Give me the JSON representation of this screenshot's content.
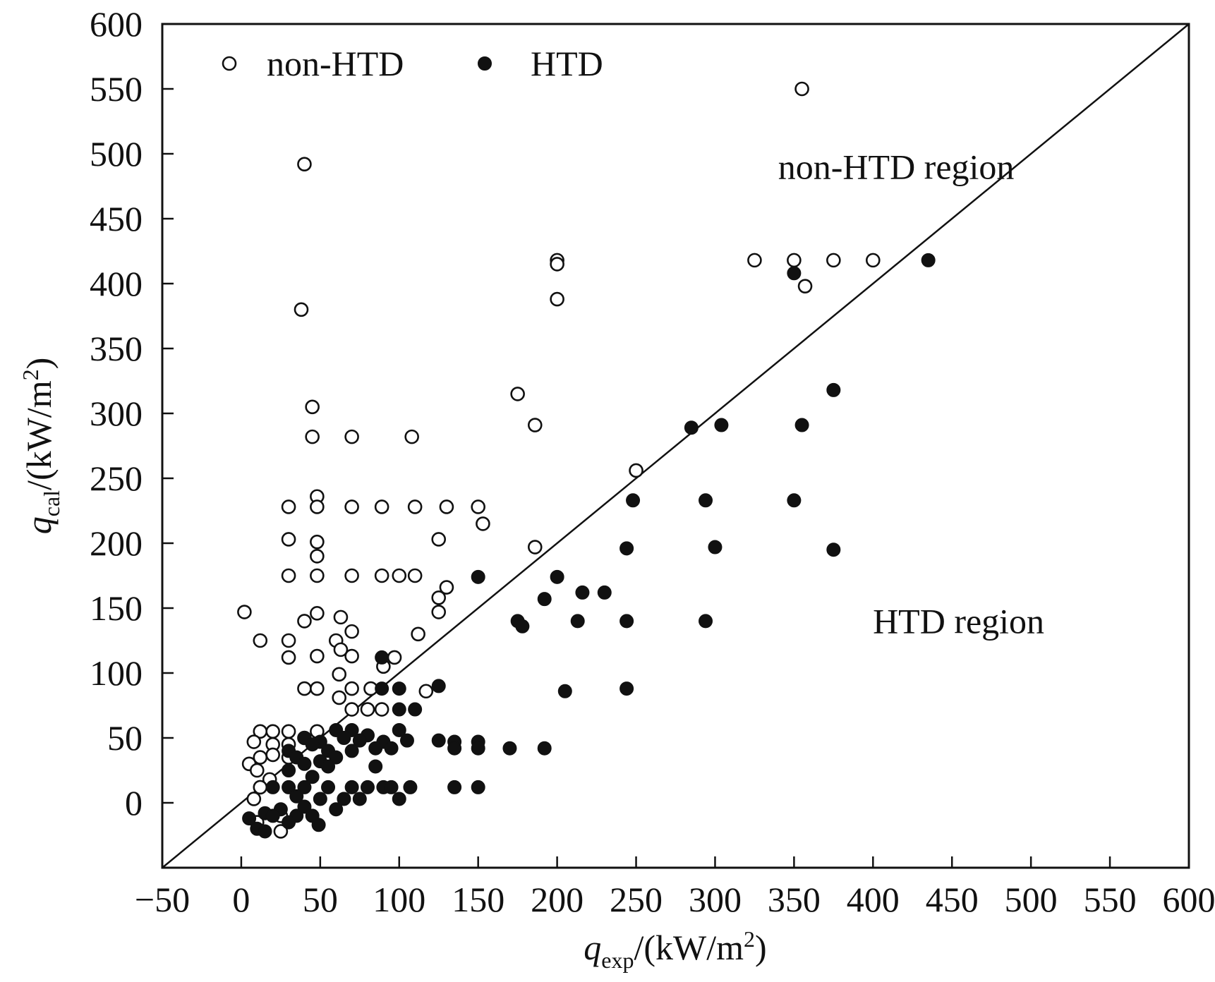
{
  "chart_data": {
    "type": "scatter",
    "x_axis": {
      "symbol": "q",
      "subscript": "exp",
      "unit_prefix": "/(kW/m",
      "unit_sup": "2",
      "unit_suffix": ")",
      "range": [
        -50,
        600
      ],
      "ticks": [
        -50,
        0,
        50,
        100,
        150,
        200,
        250,
        300,
        350,
        400,
        450,
        500,
        550,
        600
      ],
      "tick_labels": [
        "−50",
        "0",
        "50",
        "100",
        "150",
        "200",
        "250",
        "300",
        "350",
        "400",
        "450",
        "500",
        "550",
        "600"
      ]
    },
    "y_axis": {
      "symbol": "q",
      "subscript": "cal",
      "unit_prefix": "/(kW/m",
      "unit_sup": "2",
      "unit_suffix": ")",
      "range": [
        -50,
        600
      ],
      "ticks": [
        -50,
        0,
        50,
        100,
        150,
        200,
        250,
        300,
        350,
        400,
        450,
        500,
        550,
        600
      ],
      "tick_labels": [
        "−50",
        "0",
        "50",
        "100",
        "150",
        "200",
        "250",
        "300",
        "350",
        "400",
        "450",
        "500",
        "550",
        "600"
      ]
    },
    "reference_line": {
      "label": "y = x",
      "from": [
        -50,
        -50
      ],
      "to": [
        600,
        600
      ]
    },
    "legend": {
      "position": "top-left",
      "entries": [
        {
          "name": "non-HTD",
          "marker": "open-circle"
        },
        {
          "name": "HTD",
          "marker": "filled-circle"
        }
      ]
    },
    "annotations": [
      {
        "text": "non-HTD region",
        "x": 360,
        "y": 490
      },
      {
        "text": "HTD region",
        "x": 420,
        "y": 140
      }
    ],
    "series": [
      {
        "name": "non-HTD",
        "marker": "open-circle",
        "points": [
          [
            355,
            550
          ],
          [
            40,
            492
          ],
          [
            38,
            380
          ],
          [
            45,
            305
          ],
          [
            45,
            282
          ],
          [
            70,
            282
          ],
          [
            108,
            282
          ],
          [
            200,
            418
          ],
          [
            200,
            415
          ],
          [
            200,
            388
          ],
          [
            175,
            315
          ],
          [
            186,
            291
          ],
          [
            250,
            256
          ],
          [
            325,
            418
          ],
          [
            350,
            418
          ],
          [
            375,
            418
          ],
          [
            400,
            418
          ],
          [
            357,
            398
          ],
          [
            30,
            228
          ],
          [
            48,
            236
          ],
          [
            48,
            228
          ],
          [
            70,
            228
          ],
          [
            89,
            228
          ],
          [
            110,
            228
          ],
          [
            130,
            228
          ],
          [
            150,
            228
          ],
          [
            30,
            203
          ],
          [
            48,
            201
          ],
          [
            48,
            190
          ],
          [
            125,
            203
          ],
          [
            153,
            215
          ],
          [
            186,
            197
          ],
          [
            30,
            175
          ],
          [
            48,
            175
          ],
          [
            70,
            175
          ],
          [
            89,
            175
          ],
          [
            100,
            175
          ],
          [
            110,
            175
          ],
          [
            130,
            166
          ],
          [
            125,
            158
          ],
          [
            125,
            147
          ],
          [
            2,
            147
          ],
          [
            12,
            125
          ],
          [
            30,
            125
          ],
          [
            30,
            112
          ],
          [
            40,
            140
          ],
          [
            48,
            146
          ],
          [
            60,
            125
          ],
          [
            63,
            143
          ],
          [
            63,
            118
          ],
          [
            70,
            132
          ],
          [
            70,
            113
          ],
          [
            48,
            113
          ],
          [
            90,
            105
          ],
          [
            97,
            112
          ],
          [
            112,
            130
          ],
          [
            40,
            88
          ],
          [
            48,
            88
          ],
          [
            70,
            88
          ],
          [
            82,
            88
          ],
          [
            117,
            86
          ],
          [
            62,
            99
          ],
          [
            62,
            81
          ],
          [
            70,
            72
          ],
          [
            80,
            72
          ],
          [
            89,
            72
          ],
          [
            12,
            55
          ],
          [
            20,
            55
          ],
          [
            30,
            55
          ],
          [
            48,
            55
          ],
          [
            8,
            47
          ],
          [
            20,
            45
          ],
          [
            30,
            45
          ],
          [
            40,
            50
          ],
          [
            5,
            30
          ],
          [
            12,
            35
          ],
          [
            20,
            37
          ],
          [
            30,
            35
          ],
          [
            10,
            25
          ],
          [
            18,
            18
          ],
          [
            12,
            12
          ],
          [
            8,
            3
          ],
          [
            25,
            -10
          ],
          [
            10,
            -15
          ],
          [
            25,
            -22
          ]
        ]
      },
      {
        "name": "HTD",
        "marker": "filled-circle",
        "points": [
          [
            435,
            418
          ],
          [
            350,
            408
          ],
          [
            375,
            318
          ],
          [
            285,
            289
          ],
          [
            304,
            291
          ],
          [
            355,
            291
          ],
          [
            248,
            233
          ],
          [
            294,
            233
          ],
          [
            350,
            233
          ],
          [
            244,
            196
          ],
          [
            300,
            197
          ],
          [
            375,
            195
          ],
          [
            150,
            174
          ],
          [
            200,
            174
          ],
          [
            216,
            162
          ],
          [
            230,
            162
          ],
          [
            192,
            157
          ],
          [
            175,
            140
          ],
          [
            178,
            136
          ],
          [
            213,
            140
          ],
          [
            244,
            140
          ],
          [
            294,
            140
          ],
          [
            205,
            86
          ],
          [
            244,
            88
          ],
          [
            89,
            112
          ],
          [
            125,
            90
          ],
          [
            89,
            88
          ],
          [
            100,
            88
          ],
          [
            100,
            72
          ],
          [
            110,
            72
          ],
          [
            60,
            56
          ],
          [
            70,
            56
          ],
          [
            80,
            52
          ],
          [
            100,
            56
          ],
          [
            40,
            50
          ],
          [
            50,
            47
          ],
          [
            65,
            50
          ],
          [
            75,
            48
          ],
          [
            90,
            47
          ],
          [
            105,
            48
          ],
          [
            125,
            48
          ],
          [
            135,
            47
          ],
          [
            150,
            47
          ],
          [
            135,
            42
          ],
          [
            150,
            42
          ],
          [
            170,
            42
          ],
          [
            192,
            42
          ],
          [
            30,
            40
          ],
          [
            45,
            45
          ],
          [
            55,
            40
          ],
          [
            60,
            35
          ],
          [
            70,
            40
          ],
          [
            85,
            42
          ],
          [
            95,
            42
          ],
          [
            35,
            35
          ],
          [
            40,
            30
          ],
          [
            50,
            32
          ],
          [
            55,
            28
          ],
          [
            30,
            25
          ],
          [
            45,
            20
          ],
          [
            85,
            28
          ],
          [
            20,
            12
          ],
          [
            30,
            12
          ],
          [
            40,
            12
          ],
          [
            55,
            12
          ],
          [
            70,
            12
          ],
          [
            80,
            12
          ],
          [
            90,
            12
          ],
          [
            95,
            12
          ],
          [
            107,
            12
          ],
          [
            135,
            12
          ],
          [
            150,
            12
          ],
          [
            35,
            5
          ],
          [
            50,
            3
          ],
          [
            65,
            3
          ],
          [
            75,
            3
          ],
          [
            100,
            3
          ],
          [
            5,
            -12
          ],
          [
            15,
            -8
          ],
          [
            25,
            -5
          ],
          [
            35,
            -10
          ],
          [
            45,
            -10
          ],
          [
            60,
            -5
          ],
          [
            10,
            -20
          ],
          [
            15,
            -22
          ],
          [
            30,
            -15
          ],
          [
            49,
            -17
          ],
          [
            40,
            -3
          ],
          [
            20,
            -10
          ]
        ]
      }
    ]
  }
}
